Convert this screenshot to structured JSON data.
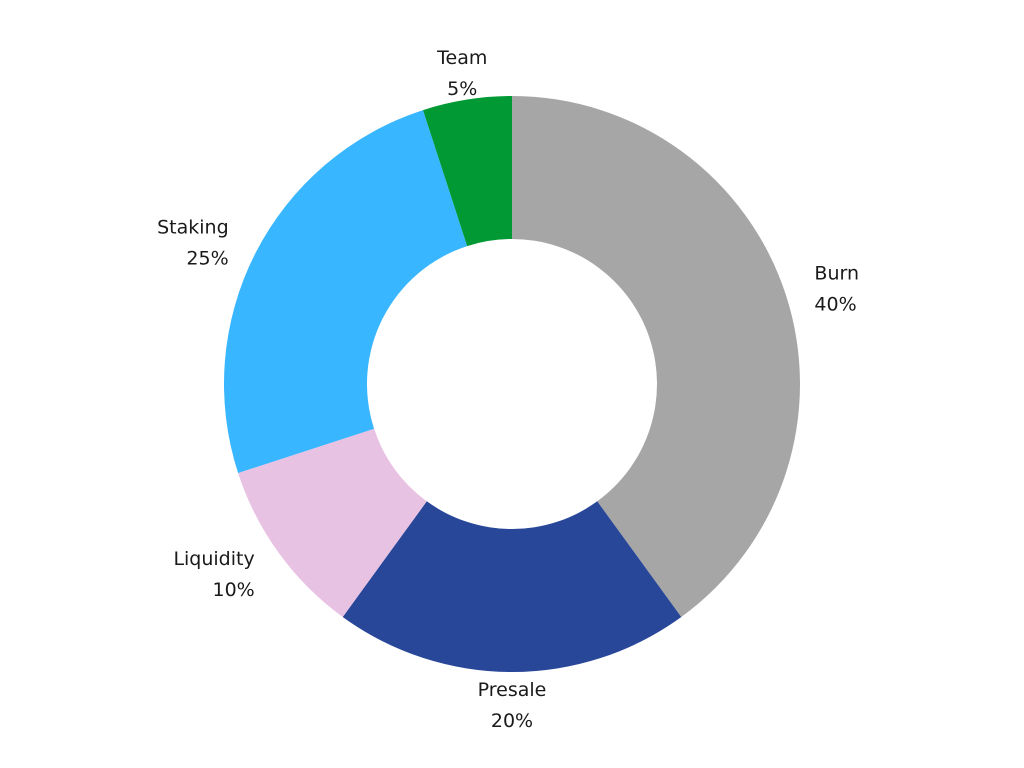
{
  "chart_data": {
    "type": "pie",
    "donut": true,
    "title": "",
    "legend": "none",
    "slices": [
      {
        "label": "Burn",
        "value": 40,
        "value_label": "40%",
        "color": "#a6a6a6"
      },
      {
        "label": "Presale",
        "value": 20,
        "value_label": "20%",
        "color": "#294799"
      },
      {
        "label": "Liquidity",
        "value": 10,
        "value_label": "10%",
        "color": "#e8c2e3"
      },
      {
        "label": "Staking",
        "value": 25,
        "value_label": "25%",
        "color": "#38b6ff"
      },
      {
        "label": "Team",
        "value": 5,
        "value_label": "5%",
        "color": "#009933"
      }
    ]
  }
}
